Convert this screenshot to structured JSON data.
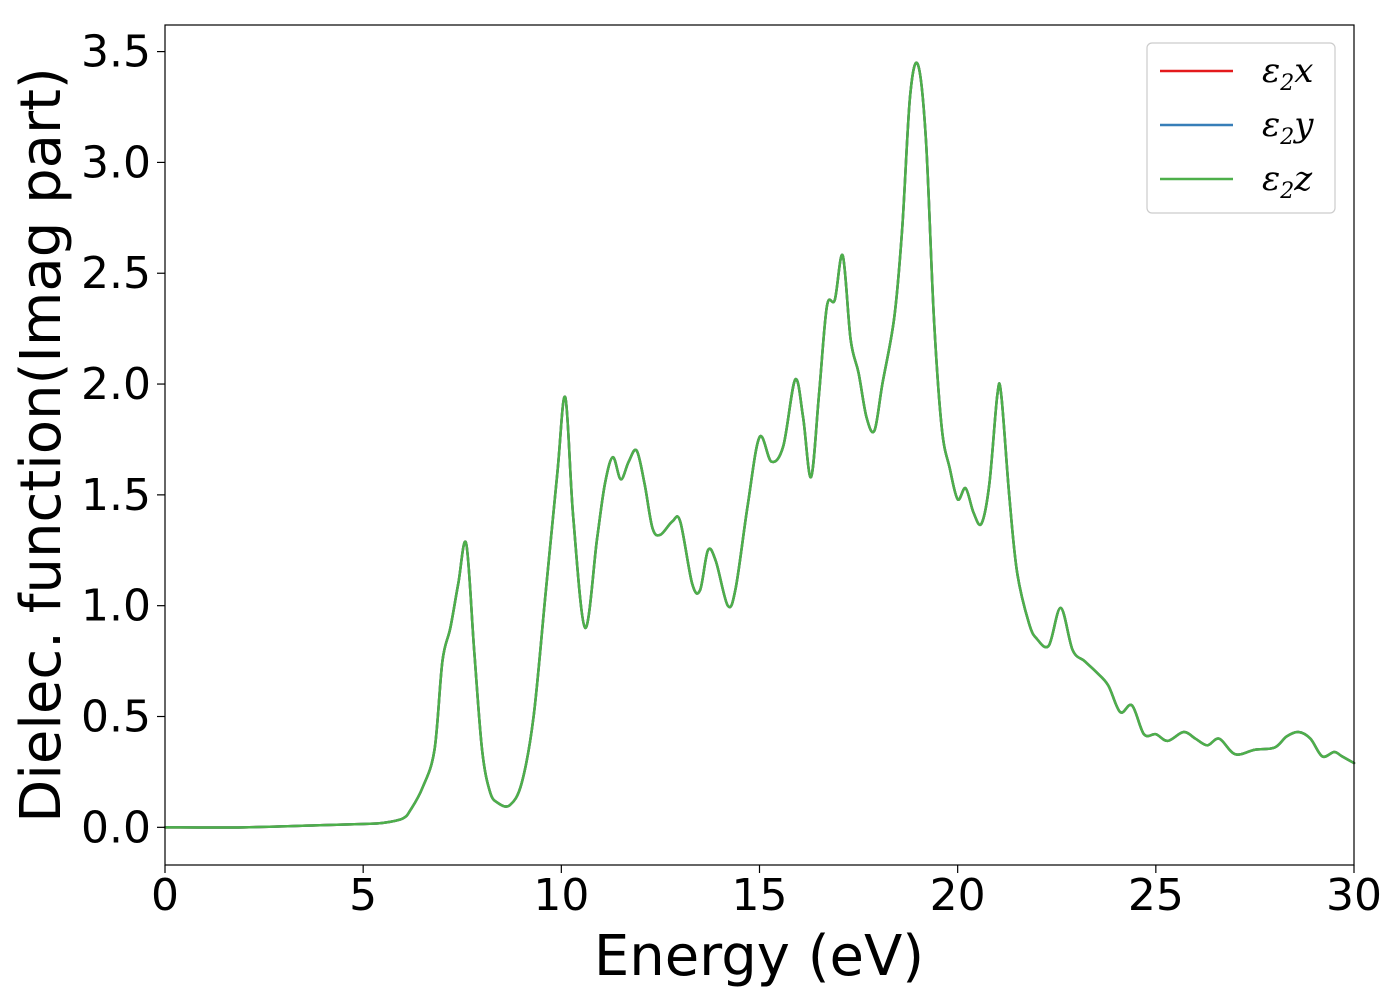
{
  "chart_data": {
    "type": "line",
    "title": "",
    "xlabel": "Energy (eV)",
    "ylabel": "Dielec. function(Imag part)",
    "xlim": [
      0,
      30
    ],
    "ylim": [
      -0.17,
      3.62
    ],
    "xticks": [
      0,
      5,
      10,
      15,
      20,
      25,
      30
    ],
    "xtick_labels": [
      "0",
      "5",
      "10",
      "15",
      "20",
      "25",
      "30"
    ],
    "yticks": [
      0.0,
      0.5,
      1.0,
      1.5,
      2.0,
      2.5,
      3.0,
      3.5
    ],
    "ytick_labels": [
      "0.0",
      "0.5",
      "1.0",
      "1.5",
      "2.0",
      "2.5",
      "3.0",
      "3.5"
    ],
    "grid": false,
    "legend_position": "top-right",
    "series": [
      {
        "name": "ε2x",
        "legend_base": "ε",
        "legend_sub": "2",
        "legend_tail": "x",
        "color": "#e41a1c",
        "x": [
          0,
          2,
          4,
          5,
          5.5,
          6.0,
          6.2,
          6.5,
          6.8,
          7.0,
          7.2,
          7.4,
          7.6,
          7.8,
          8.0,
          8.2,
          8.4,
          8.7,
          9.0,
          9.3,
          9.6,
          9.9,
          10.1,
          10.3,
          10.6,
          10.9,
          11.1,
          11.3,
          11.5,
          11.7,
          11.9,
          12.1,
          12.3,
          12.5,
          12.8,
          13.0,
          13.3,
          13.5,
          13.7,
          13.9,
          14.2,
          14.4,
          14.7,
          15.0,
          15.3,
          15.6,
          15.9,
          16.1,
          16.3,
          16.5,
          16.7,
          16.9,
          17.1,
          17.3,
          17.5,
          17.7,
          17.9,
          18.1,
          18.4,
          18.6,
          18.8,
          19.0,
          19.2,
          19.4,
          19.6,
          19.8,
          20.0,
          20.2,
          20.4,
          20.6,
          20.8,
          21.0,
          21.1,
          21.3,
          21.5,
          21.8,
          22.0,
          22.3,
          22.6,
          22.9,
          23.2,
          23.5,
          23.8,
          24.1,
          24.4,
          24.7,
          25.0,
          25.3,
          25.7,
          26.0,
          26.3,
          26.6,
          27.0,
          27.5,
          28.0,
          28.3,
          28.6,
          28.9,
          29.2,
          29.5,
          29.7,
          30.0
        ],
        "y": [
          0.0,
          0.0,
          0.01,
          0.015,
          0.02,
          0.04,
          0.08,
          0.18,
          0.35,
          0.75,
          0.9,
          1.1,
          1.28,
          0.8,
          0.35,
          0.16,
          0.11,
          0.1,
          0.2,
          0.5,
          1.05,
          1.6,
          1.94,
          1.4,
          0.9,
          1.3,
          1.55,
          1.67,
          1.57,
          1.65,
          1.7,
          1.55,
          1.35,
          1.32,
          1.38,
          1.38,
          1.1,
          1.07,
          1.25,
          1.2,
          1.0,
          1.08,
          1.45,
          1.76,
          1.65,
          1.72,
          2.02,
          1.85,
          1.58,
          1.95,
          2.35,
          2.38,
          2.58,
          2.2,
          2.05,
          1.85,
          1.79,
          2.0,
          2.3,
          2.7,
          3.3,
          3.44,
          3.1,
          2.3,
          1.8,
          1.62,
          1.48,
          1.53,
          1.42,
          1.37,
          1.55,
          1.95,
          1.95,
          1.5,
          1.15,
          0.92,
          0.85,
          0.82,
          0.99,
          0.8,
          0.75,
          0.7,
          0.64,
          0.52,
          0.55,
          0.42,
          0.42,
          0.39,
          0.43,
          0.4,
          0.37,
          0.4,
          0.33,
          0.35,
          0.36,
          0.41,
          0.43,
          0.4,
          0.32,
          0.34,
          0.32,
          0.29
        ]
      },
      {
        "name": "ε2y",
        "legend_base": "ε",
        "legend_sub": "2",
        "legend_tail": "y",
        "color": "#377eb8",
        "x": [
          0,
          2,
          4,
          5,
          5.5,
          6.0,
          6.2,
          6.5,
          6.8,
          7.0,
          7.2,
          7.4,
          7.6,
          7.8,
          8.0,
          8.2,
          8.4,
          8.7,
          9.0,
          9.3,
          9.6,
          9.9,
          10.1,
          10.3,
          10.6,
          10.9,
          11.1,
          11.3,
          11.5,
          11.7,
          11.9,
          12.1,
          12.3,
          12.5,
          12.8,
          13.0,
          13.3,
          13.5,
          13.7,
          13.9,
          14.2,
          14.4,
          14.7,
          15.0,
          15.3,
          15.6,
          15.9,
          16.1,
          16.3,
          16.5,
          16.7,
          16.9,
          17.1,
          17.3,
          17.5,
          17.7,
          17.9,
          18.1,
          18.4,
          18.6,
          18.8,
          19.0,
          19.2,
          19.4,
          19.6,
          19.8,
          20.0,
          20.2,
          20.4,
          20.6,
          20.8,
          21.0,
          21.1,
          21.3,
          21.5,
          21.8,
          22.0,
          22.3,
          22.6,
          22.9,
          23.2,
          23.5,
          23.8,
          24.1,
          24.4,
          24.7,
          25.0,
          25.3,
          25.7,
          26.0,
          26.3,
          26.6,
          27.0,
          27.5,
          28.0,
          28.3,
          28.6,
          28.9,
          29.2,
          29.5,
          29.7,
          30.0
        ],
        "y": [
          0.0,
          0.0,
          0.01,
          0.015,
          0.02,
          0.04,
          0.08,
          0.18,
          0.35,
          0.75,
          0.9,
          1.1,
          1.28,
          0.8,
          0.35,
          0.16,
          0.11,
          0.1,
          0.2,
          0.5,
          1.05,
          1.6,
          1.94,
          1.4,
          0.9,
          1.3,
          1.55,
          1.67,
          1.57,
          1.65,
          1.7,
          1.55,
          1.35,
          1.32,
          1.38,
          1.38,
          1.1,
          1.07,
          1.25,
          1.2,
          1.0,
          1.08,
          1.45,
          1.76,
          1.65,
          1.72,
          2.02,
          1.85,
          1.58,
          1.95,
          2.35,
          2.38,
          2.58,
          2.2,
          2.05,
          1.85,
          1.79,
          2.0,
          2.3,
          2.7,
          3.3,
          3.44,
          3.1,
          2.3,
          1.8,
          1.62,
          1.48,
          1.53,
          1.42,
          1.37,
          1.55,
          1.95,
          1.95,
          1.5,
          1.15,
          0.92,
          0.85,
          0.82,
          0.99,
          0.8,
          0.75,
          0.7,
          0.64,
          0.52,
          0.55,
          0.42,
          0.42,
          0.39,
          0.43,
          0.4,
          0.37,
          0.4,
          0.33,
          0.35,
          0.36,
          0.41,
          0.43,
          0.4,
          0.32,
          0.34,
          0.32,
          0.29
        ]
      },
      {
        "name": "ε2z",
        "legend_base": "ε",
        "legend_sub": "2",
        "legend_tail": "z",
        "color": "#4daf4a",
        "x": [
          0,
          2,
          4,
          5,
          5.5,
          6.0,
          6.2,
          6.5,
          6.8,
          7.0,
          7.2,
          7.4,
          7.6,
          7.8,
          8.0,
          8.2,
          8.4,
          8.7,
          9.0,
          9.3,
          9.6,
          9.9,
          10.1,
          10.3,
          10.6,
          10.9,
          11.1,
          11.3,
          11.5,
          11.7,
          11.9,
          12.1,
          12.3,
          12.5,
          12.8,
          13.0,
          13.3,
          13.5,
          13.7,
          13.9,
          14.2,
          14.4,
          14.7,
          15.0,
          15.3,
          15.6,
          15.9,
          16.1,
          16.3,
          16.5,
          16.7,
          16.9,
          17.1,
          17.3,
          17.5,
          17.7,
          17.9,
          18.1,
          18.4,
          18.6,
          18.8,
          19.0,
          19.2,
          19.4,
          19.6,
          19.8,
          20.0,
          20.2,
          20.4,
          20.6,
          20.8,
          21.0,
          21.1,
          21.3,
          21.5,
          21.8,
          22.0,
          22.3,
          22.6,
          22.9,
          23.2,
          23.5,
          23.8,
          24.1,
          24.4,
          24.7,
          25.0,
          25.3,
          25.7,
          26.0,
          26.3,
          26.6,
          27.0,
          27.5,
          28.0,
          28.3,
          28.6,
          28.9,
          29.2,
          29.5,
          29.7,
          30.0
        ],
        "y": [
          0.0,
          0.0,
          0.01,
          0.015,
          0.02,
          0.04,
          0.08,
          0.18,
          0.35,
          0.75,
          0.9,
          1.1,
          1.28,
          0.8,
          0.35,
          0.16,
          0.11,
          0.1,
          0.2,
          0.5,
          1.05,
          1.6,
          1.94,
          1.4,
          0.9,
          1.3,
          1.55,
          1.67,
          1.57,
          1.65,
          1.7,
          1.55,
          1.35,
          1.32,
          1.38,
          1.38,
          1.1,
          1.07,
          1.25,
          1.2,
          1.0,
          1.08,
          1.45,
          1.76,
          1.65,
          1.72,
          2.02,
          1.85,
          1.58,
          1.95,
          2.35,
          2.38,
          2.58,
          2.2,
          2.05,
          1.85,
          1.79,
          2.0,
          2.3,
          2.7,
          3.3,
          3.44,
          3.1,
          2.3,
          1.8,
          1.62,
          1.48,
          1.53,
          1.42,
          1.37,
          1.55,
          1.95,
          1.95,
          1.5,
          1.15,
          0.92,
          0.85,
          0.82,
          0.99,
          0.8,
          0.75,
          0.7,
          0.64,
          0.52,
          0.55,
          0.42,
          0.42,
          0.39,
          0.43,
          0.4,
          0.37,
          0.4,
          0.33,
          0.35,
          0.36,
          0.41,
          0.43,
          0.4,
          0.32,
          0.34,
          0.32,
          0.29
        ]
      }
    ]
  }
}
